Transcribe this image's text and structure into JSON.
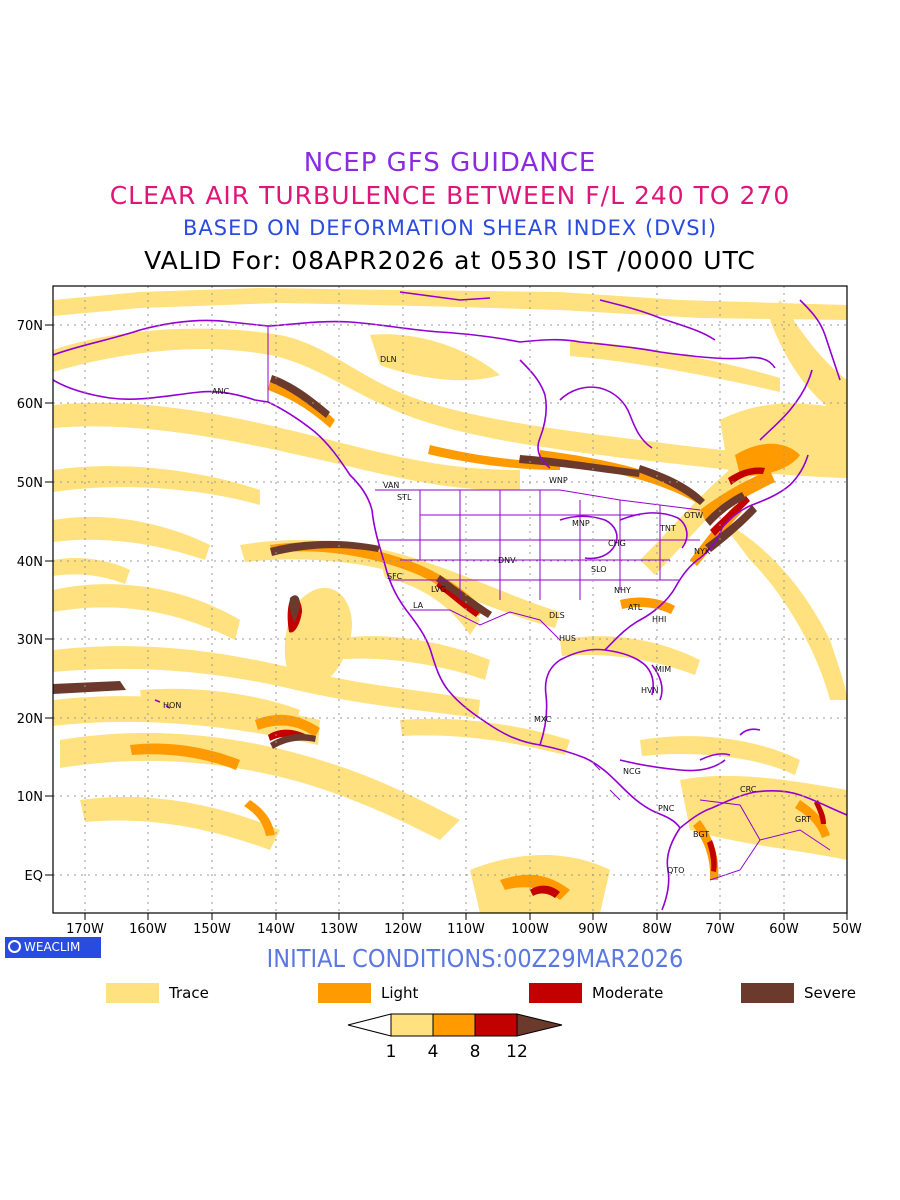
{
  "titles": {
    "line1": "NCEP GFS GUIDANCE",
    "line2": "CLEAR AIR TURBULENCE BETWEEN F/L 240 TO 270",
    "line3": "BASED ON DEFORMATION SHEAR INDEX (DVSI)",
    "line4": "VALID For: 08APR2026 at 0530 IST /0000 UTC"
  },
  "map": {
    "lat_labels": [
      "70N",
      "60N",
      "50N",
      "40N",
      "30N",
      "20N",
      "10N",
      "EQ"
    ],
    "lon_labels": [
      "170W",
      "160W",
      "150W",
      "140W",
      "130W",
      "120W",
      "110W",
      "100W",
      "90W",
      "80W",
      "70W",
      "60W",
      "50W"
    ],
    "stations": [
      {
        "name": "DLN"
      },
      {
        "name": "ANC"
      },
      {
        "name": "VAN"
      },
      {
        "name": "STL"
      },
      {
        "name": "WNP"
      },
      {
        "name": "OTW"
      },
      {
        "name": "MNP"
      },
      {
        "name": "TNT"
      },
      {
        "name": "CHG"
      },
      {
        "name": "NYK"
      },
      {
        "name": "DNV"
      },
      {
        "name": "SFC"
      },
      {
        "name": "SLO"
      },
      {
        "name": "LVG"
      },
      {
        "name": "NHY"
      },
      {
        "name": "LA"
      },
      {
        "name": "ATL"
      },
      {
        "name": "DLS"
      },
      {
        "name": "HHI"
      },
      {
        "name": "HUS"
      },
      {
        "name": "MIM"
      },
      {
        "name": "HVN"
      },
      {
        "name": "HON"
      },
      {
        "name": "MXC"
      },
      {
        "name": "NCG"
      },
      {
        "name": "CRC"
      },
      {
        "name": "PNC"
      },
      {
        "name": "GRT"
      },
      {
        "name": "BGT"
      },
      {
        "name": "QTO"
      }
    ]
  },
  "branding": {
    "logo_text": "WEACLIM"
  },
  "initial_conditions": "INITIAL CONDITIONS:00Z29MAR2026",
  "legend": {
    "items": [
      {
        "label": "Trace",
        "color": "#ffe17f"
      },
      {
        "label": "Light",
        "color": "#ff9a00"
      },
      {
        "label": "Moderate",
        "color": "#c30000"
      },
      {
        "label": "Severe",
        "color": "#6b3a2c"
      }
    ]
  },
  "color_scale": {
    "colors": [
      "#ffffff",
      "#ffe17f",
      "#ff9a00",
      "#c30000",
      "#6b3a2c"
    ],
    "labels": [
      "1",
      "4",
      "8",
      "12"
    ]
  }
}
